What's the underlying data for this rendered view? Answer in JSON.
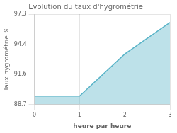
{
  "chart_data": {
    "type": "area",
    "title": "Evolution du taux d'hygrométrie",
    "xlabel": "heure par heure",
    "ylabel": "Taux hygrométrie %",
    "x": [
      0,
      1,
      2,
      3
    ],
    "values": [
      89.5,
      89.5,
      93.5,
      96.5
    ],
    "color": "#5ab4c8",
    "xlim": [
      0,
      3
    ],
    "ylim": [
      88.7,
      97.3
    ],
    "xticks": [
      0,
      1,
      2,
      3
    ],
    "yticks": [
      88.7,
      91.6,
      94.4,
      97.3
    ],
    "grid": true
  }
}
